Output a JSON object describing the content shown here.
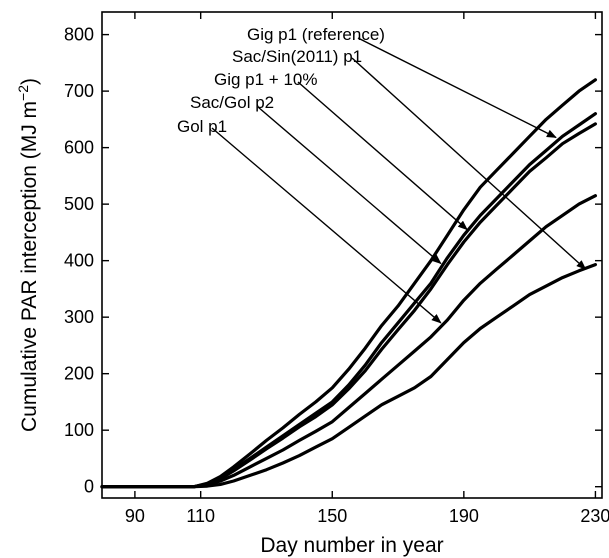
{
  "chart_data": {
    "type": "line",
    "xlabel": "Day number in year",
    "ylabel": "Cumulative PAR interception (MJ m",
    "ylabel_sup": "−2",
    "ylabel_close": ")",
    "xlim": [
      80,
      232
    ],
    "ylim": [
      -20,
      840
    ],
    "x_ticks": [
      90,
      110,
      150,
      190,
      230
    ],
    "y_ticks": [
      0,
      100,
      200,
      300,
      400,
      500,
      600,
      700,
      800
    ],
    "grid": false,
    "series": [
      {
        "name": "Gig p1 (reference)",
        "x": [
          80,
          108,
          112,
          116,
          120,
          125,
          130,
          135,
          140,
          145,
          150,
          155,
          160,
          165,
          170,
          175,
          180,
          185,
          190,
          195,
          200,
          205,
          210,
          215,
          220,
          225,
          230
        ],
        "y": [
          0,
          0,
          5,
          15,
          30,
          50,
          70,
          90,
          110,
          130,
          150,
          180,
          215,
          255,
          290,
          325,
          360,
          405,
          445,
          480,
          510,
          540,
          570,
          595,
          620,
          640,
          660
        ]
      },
      {
        "name": "Sac/Sin(2011) p1",
        "x": [
          80,
          108,
          112,
          116,
          120,
          125,
          130,
          135,
          140,
          145,
          150,
          155,
          160,
          165,
          170,
          175,
          180,
          185,
          190,
          195,
          200,
          205,
          210,
          215,
          220,
          225,
          230
        ],
        "y": [
          0,
          0,
          1,
          4,
          10,
          20,
          30,
          42,
          55,
          70,
          85,
          105,
          125,
          145,
          160,
          175,
          195,
          225,
          255,
          280,
          300,
          320,
          340,
          355,
          370,
          382,
          393
        ]
      },
      {
        "name": "Gig p1 + 10%",
        "x": [
          80,
          108,
          112,
          116,
          120,
          125,
          130,
          135,
          140,
          145,
          150,
          155,
          160,
          165,
          170,
          175,
          180,
          185,
          190,
          195,
          200,
          205,
          210,
          215,
          220,
          225,
          230
        ],
        "y": [
          0,
          0,
          6,
          18,
          35,
          58,
          82,
          104,
          128,
          150,
          175,
          208,
          245,
          285,
          320,
          360,
          400,
          445,
          490,
          530,
          560,
          590,
          620,
          650,
          675,
          700,
          720
        ]
      },
      {
        "name": "Sac/Gol p2",
        "x": [
          80,
          108,
          112,
          116,
          120,
          125,
          130,
          135,
          140,
          145,
          150,
          155,
          160,
          165,
          170,
          175,
          180,
          185,
          190,
          195,
          200,
          205,
          210,
          215,
          220,
          225,
          230
        ],
        "y": [
          0,
          0,
          5,
          14,
          28,
          47,
          67,
          86,
          106,
          124,
          145,
          173,
          205,
          243,
          278,
          312,
          350,
          393,
          433,
          468,
          498,
          528,
          558,
          582,
          607,
          625,
          642
        ]
      },
      {
        "name": "Gol p1",
        "x": [
          80,
          108,
          112,
          116,
          120,
          125,
          130,
          135,
          140,
          145,
          150,
          155,
          160,
          165,
          170,
          175,
          180,
          185,
          190,
          195,
          200,
          205,
          210,
          215,
          220,
          225,
          230
        ],
        "y": [
          0,
          0,
          3,
          10,
          20,
          35,
          50,
          65,
          82,
          98,
          115,
          140,
          165,
          190,
          215,
          240,
          265,
          295,
          330,
          360,
          385,
          410,
          435,
          460,
          480,
          500,
          515
        ]
      }
    ],
    "annotations": [
      {
        "label": "Gig p1 (reference)",
        "target": [
          218,
          618
        ]
      },
      {
        "label": "Sac/Sin(2011) p1",
        "target": [
          227,
          385
        ]
      },
      {
        "label": "Gig p1 + 10%",
        "target": [
          191,
          455
        ]
      },
      {
        "label": "Sac/Gol p2",
        "target": [
          183,
          395
        ]
      },
      {
        "label": "Gol p1",
        "target": [
          183,
          290
        ]
      }
    ]
  }
}
